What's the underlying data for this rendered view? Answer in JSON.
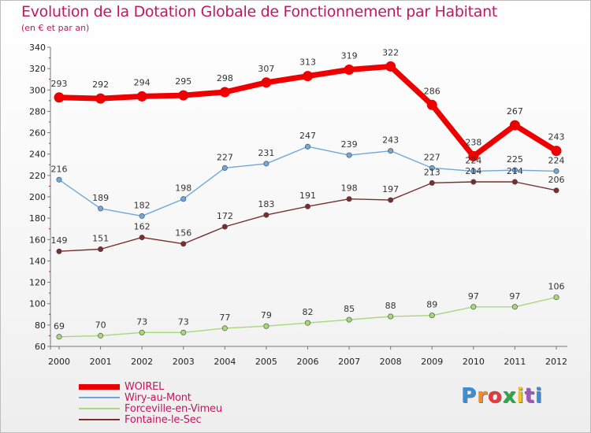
{
  "title": "Evolution de la Dotation Globale de Fonctionnement par Habitant",
  "subtitle": "(en € et par an)",
  "logo": "Proxiti",
  "chart_data": {
    "type": "line",
    "x": [
      "2000",
      "2001",
      "2002",
      "2003",
      "2004",
      "2005",
      "2006",
      "2007",
      "2008",
      "2009",
      "2010",
      "2011",
      "2012"
    ],
    "ylim": [
      60,
      340
    ],
    "yticks": [
      60,
      80,
      100,
      120,
      140,
      160,
      180,
      200,
      220,
      240,
      260,
      280,
      300,
      320,
      340
    ],
    "grid": false,
    "legend": "bottom-left",
    "series": [
      {
        "name": "WOIREL",
        "color": "#ee0000",
        "values": [
          293,
          292,
          294,
          295,
          298,
          307,
          313,
          319,
          322,
          286,
          238,
          267,
          243
        ]
      },
      {
        "name": "Wiry-au-Mont",
        "color": "#6fa8dc",
        "values": [
          216,
          189,
          182,
          198,
          227,
          231,
          247,
          239,
          243,
          227,
          224,
          225,
          224
        ]
      },
      {
        "name": "Forceville-en-Vimeu",
        "color": "#a8d878",
        "values": [
          69,
          70,
          73,
          73,
          77,
          79,
          82,
          85,
          88,
          89,
          97,
          97,
          106
        ]
      },
      {
        "name": "Fontaine-le-Sec",
        "color": "#7a2e2e",
        "values": [
          149,
          151,
          162,
          156,
          172,
          183,
          191,
          198,
          197,
          213,
          214,
          214,
          206
        ]
      }
    ]
  }
}
